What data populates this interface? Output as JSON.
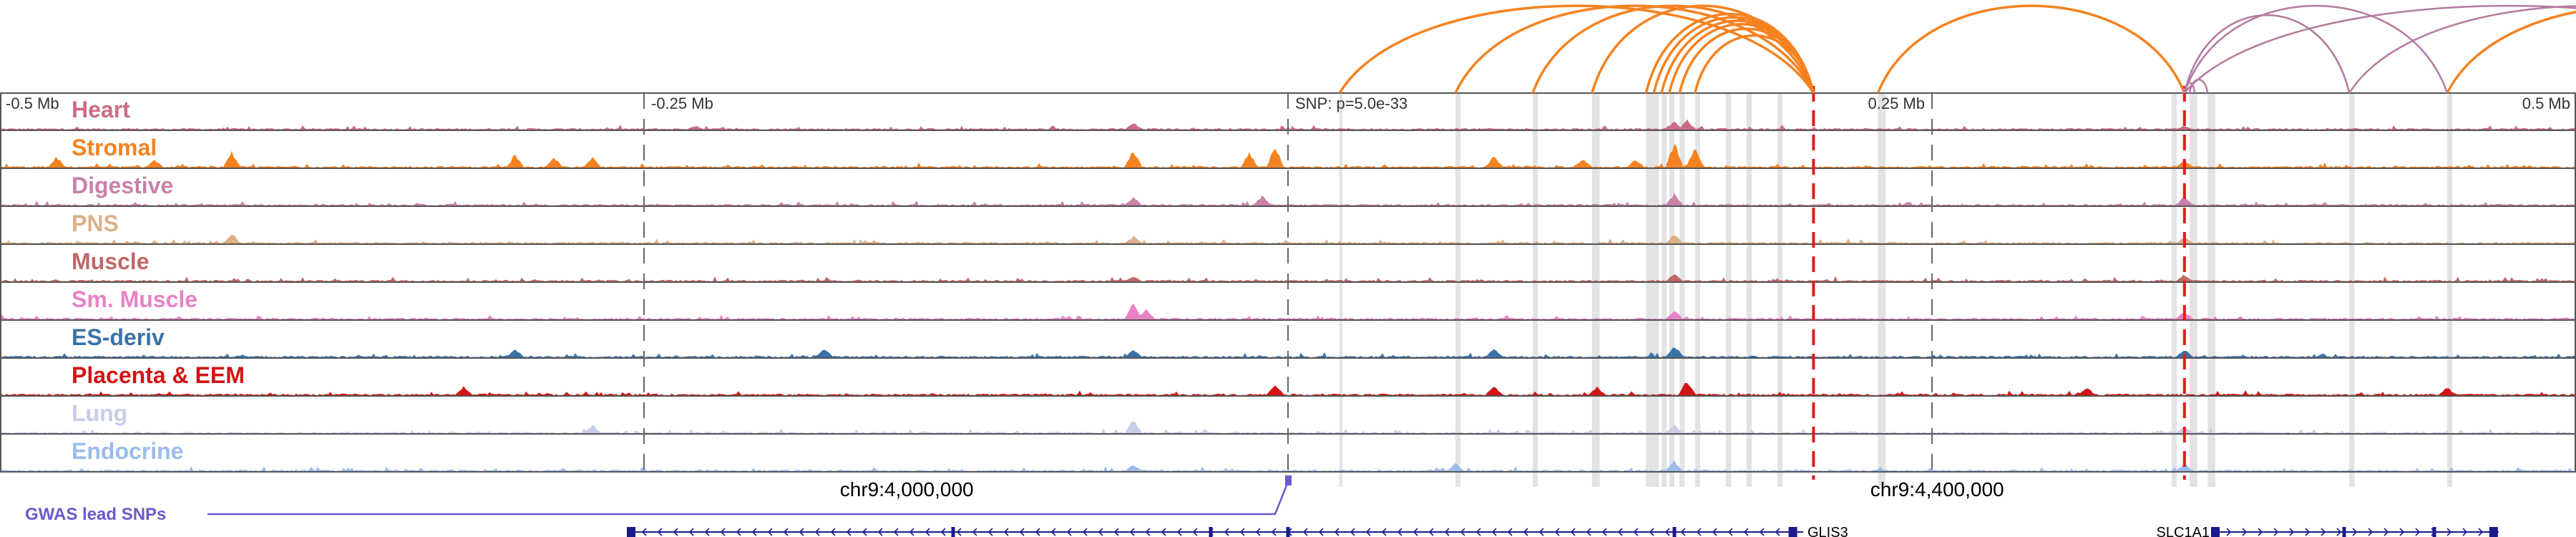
{
  "chart_data": {
    "type": "genome-browser",
    "scale_labels": [
      {
        "label": "-0.5 Mb",
        "pos": -500000
      },
      {
        "label": "-0.25 Mb",
        "pos": -250000
      },
      {
        "label": "0.25 Mb",
        "pos": 250000
      },
      {
        "label": "0.5 Mb",
        "pos": 500000
      }
    ],
    "xlim": [
      -500000,
      500000
    ],
    "snp": {
      "label": "SNP: p=5.0e-33",
      "pos": 0
    },
    "coordinate_labels": [
      {
        "label": "chr9:4,000,000",
        "pos": -148000
      },
      {
        "label": "chr9:4,400,000",
        "pos": 252000
      }
    ],
    "tracks": [
      {
        "name": "Heart",
        "color": "#cc6b85",
        "max": 0.25,
        "peaks": [
          [
            -230000,
            0.15
          ],
          [
            -60000,
            0.25
          ],
          [
            150000,
            0.3
          ],
          [
            155000,
            0.35
          ],
          [
            348000,
            0.15
          ]
        ]
      },
      {
        "name": "Stromal",
        "color": "#f58220",
        "max": 0.9,
        "peaks": [
          [
            -478000,
            0.4
          ],
          [
            -440000,
            0.3
          ],
          [
            -410000,
            0.55
          ],
          [
            -300000,
            0.5
          ],
          [
            -285000,
            0.4
          ],
          [
            -270000,
            0.35
          ],
          [
            -60000,
            0.65
          ],
          [
            -5000,
            0.8
          ],
          [
            -15000,
            0.55
          ],
          [
            80000,
            0.45
          ],
          [
            114000,
            0.3
          ],
          [
            150000,
            0.9
          ],
          [
            158000,
            0.75
          ],
          [
            135000,
            0.3
          ],
          [
            115000,
            0.25
          ],
          [
            348000,
            0.3
          ]
        ]
      },
      {
        "name": "Digestive",
        "color": "#c882a8",
        "max": 0.35,
        "peaks": [
          [
            -60000,
            0.3
          ],
          [
            -10000,
            0.35
          ],
          [
            150000,
            0.45
          ],
          [
            348000,
            0.35
          ]
        ]
      },
      {
        "name": "PNS",
        "color": "#dcb088",
        "max": 0.25,
        "peaks": [
          [
            -410000,
            0.35
          ],
          [
            -60000,
            0.25
          ],
          [
            150000,
            0.35
          ],
          [
            348000,
            0.25
          ]
        ]
      },
      {
        "name": "Muscle",
        "color": "#c06868",
        "max": 0.2,
        "peaks": [
          [
            -60000,
            0.2
          ],
          [
            150000,
            0.3
          ],
          [
            348000,
            0.25
          ]
        ]
      },
      {
        "name": "Sm. Muscle",
        "color": "#e882c6",
        "max": 0.6,
        "peaks": [
          [
            -60000,
            0.7
          ],
          [
            -55000,
            0.4
          ],
          [
            150000,
            0.35
          ],
          [
            348000,
            0.3
          ]
        ]
      },
      {
        "name": "ES-deriv",
        "color": "#3a72a8",
        "max": 0.35,
        "peaks": [
          [
            -300000,
            0.3
          ],
          [
            -180000,
            0.35
          ],
          [
            -60000,
            0.3
          ],
          [
            80000,
            0.35
          ],
          [
            150000,
            0.45
          ],
          [
            348000,
            0.3
          ]
        ]
      },
      {
        "name": "Placenta & EEM",
        "color": "#d21414",
        "max": 0.45,
        "peaks": [
          [
            -320000,
            0.3
          ],
          [
            -5000,
            0.45
          ],
          [
            80000,
            0.35
          ],
          [
            120000,
            0.3
          ],
          [
            155000,
            0.55
          ],
          [
            310000,
            0.3
          ],
          [
            450000,
            0.3
          ]
        ]
      },
      {
        "name": "Lung",
        "color": "#c8cde8",
        "max": 0.4,
        "peaks": [
          [
            -60000,
            0.5
          ],
          [
            -270000,
            0.3
          ],
          [
            150000,
            0.3
          ],
          [
            348000,
            0.25
          ]
        ]
      },
      {
        "name": "Endocrine",
        "color": "#9bbcec",
        "max": 0.3,
        "peaks": [
          [
            -60000,
            0.25
          ],
          [
            65000,
            0.3
          ],
          [
            150000,
            0.35
          ],
          [
            348000,
            0.3
          ]
        ]
      }
    ],
    "highlight_regions": [
      [
        20000,
        21000
      ],
      [
        65000,
        67000
      ],
      [
        95000,
        97000
      ],
      [
        118000,
        121000
      ],
      [
        139000,
        142000
      ],
      [
        142000,
        144000
      ],
      [
        145000,
        147000
      ],
      [
        148000,
        150000
      ],
      [
        152000,
        154000
      ],
      [
        158000,
        160000
      ],
      [
        170000,
        172000
      ],
      [
        178000,
        180000
      ],
      [
        190000,
        192000
      ],
      [
        229000,
        232000
      ],
      [
        343000,
        345000
      ],
      [
        350000,
        353000
      ],
      [
        357000,
        360000
      ],
      [
        412000,
        414000
      ],
      [
        450000,
        452000
      ]
    ],
    "boundaries": [
      204000,
      348000
    ],
    "loops": {
      "orange": [
        [
          20000,
          204000
        ],
        [
          65000,
          204000
        ],
        [
          95000,
          204000
        ],
        [
          118000,
          204000
        ],
        [
          139000,
          204000
        ],
        [
          142000,
          204000
        ],
        [
          145000,
          204000
        ],
        [
          148000,
          204000
        ],
        [
          152000,
          204000
        ],
        [
          158000,
          204000
        ],
        [
          229000,
          348000
        ],
        [
          450000,
          600000
        ]
      ],
      "purple": [
        [
          348000,
          412000
        ],
        [
          348000,
          450000
        ],
        [
          348000,
          600000
        ],
        [
          412000,
          600000
        ],
        [
          348000,
          352000
        ],
        [
          350000,
          357000
        ]
      ],
      "orange_color": "#f58220",
      "purple_color": "#b47aa0"
    },
    "gwas": {
      "label": "GWAS lead SNPs",
      "color": "#6a5acd",
      "snp_pos": 0
    },
    "genes": [
      {
        "name": "GLIS3",
        "start": -255000,
        "end": 200000,
        "strand": "-",
        "exons": [
          -255000,
          -130000,
          -30000,
          0,
          150000,
          196000
        ]
      },
      {
        "name": "SLC1A1",
        "start": 360000,
        "end": 470000,
        "strand": "+",
        "exons": [
          360000,
          410000,
          445000,
          468000
        ]
      }
    ],
    "grid": false
  }
}
